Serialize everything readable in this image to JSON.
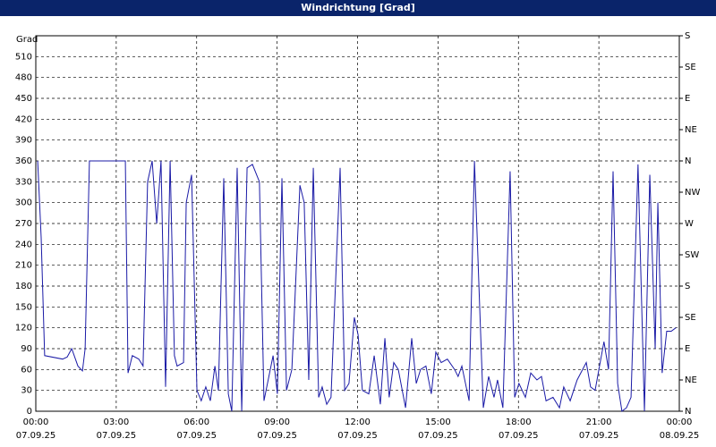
{
  "chart_data": {
    "type": "line",
    "title": "Windrichtung [Grad]",
    "y_label": "Grad",
    "x": [
      0.07,
      0.2,
      0.33,
      1.0,
      1.17,
      1.34,
      1.57,
      1.74,
      1.84,
      2.0,
      3.34,
      3.44,
      3.6,
      3.84,
      4.0,
      4.17,
      4.34,
      4.51,
      4.67,
      4.84,
      5.01,
      5.17,
      5.27,
      5.51,
      5.61,
      5.81,
      6.01,
      6.17,
      6.34,
      6.51,
      6.68,
      6.81,
      7.01,
      7.18,
      7.31,
      7.51,
      7.68,
      7.88,
      8.08,
      8.34,
      8.51,
      8.85,
      9.01,
      9.18,
      9.35,
      9.55,
      9.85,
      10.01,
      10.18,
      10.35,
      10.55,
      10.68,
      10.85,
      11.01,
      11.35,
      11.52,
      11.68,
      11.88,
      12.02,
      12.18,
      12.42,
      12.62,
      12.85,
      13.02,
      13.18,
      13.35,
      13.52,
      13.79,
      14.02,
      14.19,
      14.35,
      14.55,
      14.75,
      14.92,
      15.12,
      15.35,
      15.62,
      15.75,
      15.89,
      16.16,
      16.36,
      16.69,
      16.89,
      17.09,
      17.22,
      17.42,
      17.69,
      17.86,
      18.02,
      18.26,
      18.46,
      18.69,
      18.86,
      19.03,
      19.29,
      19.53,
      19.69,
      19.93,
      20.19,
      20.53,
      20.69,
      20.86,
      21.19,
      21.36,
      21.53,
      21.7,
      21.86,
      22.03,
      22.2,
      22.46,
      22.7,
      22.9,
      23.1,
      23.2,
      23.36,
      23.53,
      23.7,
      23.87
    ],
    "series": [
      {
        "name": "Windrichtung",
        "color": "#1a1aa6",
        "values": [
          360,
          250,
          80,
          75,
          78,
          90,
          65,
          58,
          90,
          360,
          360,
          55,
          80,
          75,
          65,
          330,
          360,
          270,
          360,
          35,
          360,
          80,
          65,
          70,
          300,
          340,
          30,
          15,
          35,
          15,
          65,
          30,
          335,
          25,
          0,
          350,
          0,
          350,
          355,
          330,
          15,
          80,
          25,
          335,
          30,
          60,
          325,
          300,
          45,
          350,
          20,
          35,
          10,
          20,
          350,
          30,
          40,
          135,
          110,
          30,
          25,
          80,
          10,
          105,
          20,
          70,
          60,
          5,
          105,
          40,
          60,
          65,
          25,
          85,
          70,
          75,
          60,
          50,
          65,
          15,
          360,
          5,
          50,
          20,
          45,
          5,
          345,
          20,
          40,
          20,
          55,
          45,
          50,
          15,
          20,
          5,
          35,
          15,
          45,
          70,
          35,
          30,
          100,
          60,
          345,
          40,
          0,
          5,
          20,
          355,
          0,
          340,
          90,
          300,
          55,
          115,
          115,
          120
        ]
      }
    ],
    "xlim": [
      0,
      24
    ],
    "xticks": [
      {
        "value": 0,
        "label": "00:00\n07.09.25"
      },
      {
        "value": 3,
        "label": "03:00\n07.09.25"
      },
      {
        "value": 6,
        "label": "06:00\n07.09.25"
      },
      {
        "value": 9,
        "label": "09:00\n07.09.25"
      },
      {
        "value": 12,
        "label": "12:00\n07.09.25"
      },
      {
        "value": 15,
        "label": "15:00\n07.09.25"
      },
      {
        "value": 18,
        "label": "18:00\n07.09.25"
      },
      {
        "value": 21,
        "label": "21:00\n07.09.25"
      },
      {
        "value": 24,
        "label": "00:00\n08.09.25"
      }
    ],
    "ylim": [
      0,
      540
    ],
    "yticks": [
      0,
      30,
      60,
      90,
      120,
      150,
      180,
      210,
      240,
      270,
      300,
      330,
      360,
      390,
      420,
      450,
      480,
      510
    ],
    "y2lim": [
      0,
      540
    ],
    "y2ticks": [
      {
        "value": 0,
        "label": "N"
      },
      {
        "value": 45,
        "label": "NE"
      },
      {
        "value": 90,
        "label": "E"
      },
      {
        "value": 135,
        "label": "SE"
      },
      {
        "value": 180,
        "label": "S"
      },
      {
        "value": 225,
        "label": "SW"
      },
      {
        "value": 270,
        "label": "W"
      },
      {
        "value": 315,
        "label": "NW"
      },
      {
        "value": 360,
        "label": "N"
      },
      {
        "value": 405,
        "label": "NE"
      },
      {
        "value": 450,
        "label": "E"
      },
      {
        "value": 495,
        "label": "SE"
      },
      {
        "value": 540,
        "label": "S"
      }
    ],
    "grid": true
  }
}
